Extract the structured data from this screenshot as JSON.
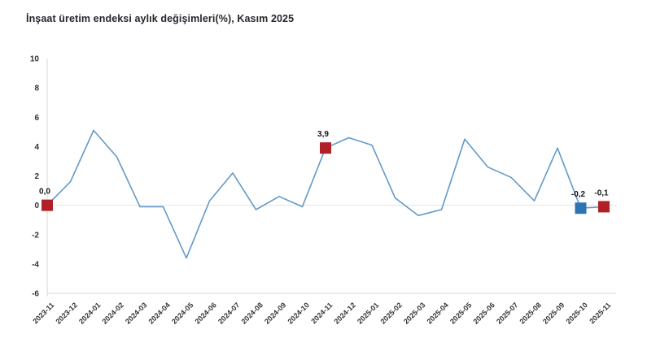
{
  "title": "İnşaat üretim endeksi aylık değişimleri(%), Kasım 2025",
  "chart_data": {
    "type": "line",
    "title": "İnşaat üretim endeksi aylık değişimleri(%), Kasım 2025",
    "xlabel": "",
    "ylabel": "",
    "categories": [
      "2023-11",
      "2023-12",
      "2024-01",
      "2024-02",
      "2024-03",
      "2024-04",
      "2024-05",
      "2024-06",
      "2024-07",
      "2024-08",
      "2024-09",
      "2024-10",
      "2024-11",
      "2024-12",
      "2025-01",
      "2025-02",
      "2025-03",
      "2025-04",
      "2025-05",
      "2025-06",
      "2025-07",
      "2025-08",
      "2025-09",
      "2025-10",
      "2025-11"
    ],
    "values": [
      0.0,
      1.6,
      5.1,
      3.3,
      -0.1,
      -0.1,
      -3.6,
      0.3,
      2.2,
      -0.3,
      0.6,
      -0.1,
      3.9,
      4.6,
      4.1,
      0.5,
      -0.7,
      -0.3,
      4.5,
      2.6,
      1.9,
      0.3,
      3.9,
      -0.2,
      -0.1
    ],
    "ylim": [
      -6,
      10
    ],
    "y_ticks": [
      10,
      8,
      6,
      4,
      2,
      0,
      -2,
      -4,
      -6
    ],
    "grid": "zero-line and bottom axis only, no legend",
    "legend_position": "none",
    "line_color": "#6399C8",
    "axis_color": "#d9d9d9",
    "zero_line_color": "#e4e4e4",
    "highlighted_points": [
      {
        "category": "2023-11",
        "value": 0.0,
        "label": "0,0",
        "color": "#B02027",
        "marker": "square"
      },
      {
        "category": "2024-11",
        "value": 3.9,
        "label": "3,9",
        "color": "#B02027",
        "marker": "square"
      },
      {
        "category": "2025-10",
        "value": -0.2,
        "label": "-0,2",
        "color": "#2E74B5",
        "marker": "square"
      },
      {
        "category": "2025-11",
        "value": -0.1,
        "label": "-0,1",
        "color": "#B02027",
        "marker": "square"
      }
    ]
  }
}
